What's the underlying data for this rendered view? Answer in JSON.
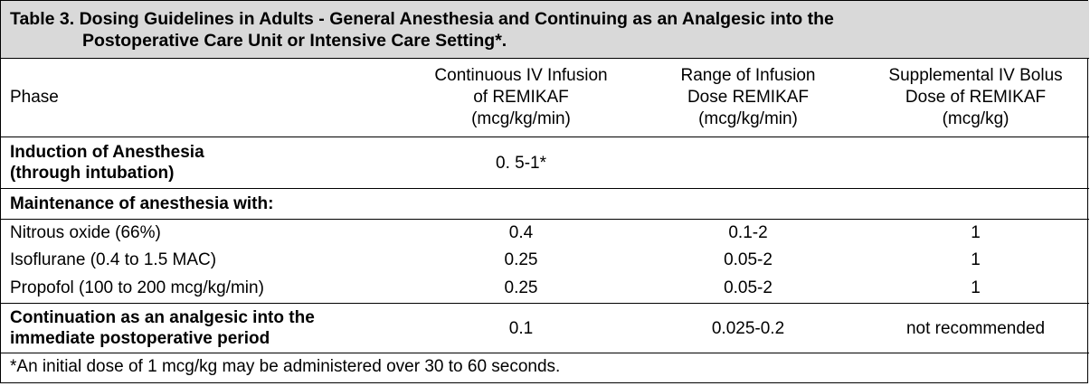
{
  "table": {
    "title_line1": "Table 3. Dosing Guidelines in Adults - General Anesthesia and Continuing as an Analgesic into the",
    "title_line2": "Postoperative Care Unit or Intensive Care Setting*.",
    "headers": {
      "phase": "Phase",
      "continuous_1": "Continuous IV Infusion",
      "continuous_2": "of REMIKAF",
      "continuous_3": "(mcg/kg/min)",
      "range_1": "Range of Infusion",
      "range_2": "Dose REMIKAF",
      "range_3": "(mcg/kg/min)",
      "bolus_1": "Supplemental IV Bolus",
      "bolus_2": "Dose of REMIKAF",
      "bolus_3": "(mcg/kg)"
    },
    "induction": {
      "phase_1": "Induction of Anesthesia",
      "phase_2": "(through intubation)",
      "continuous": "0. 5-1*",
      "range": "",
      "bolus": ""
    },
    "maintenance_heading": "Maintenance of anesthesia with:",
    "maintenance_rows": [
      {
        "phase": "Nitrous oxide (66%)",
        "continuous": "0.4",
        "range": "0.1-2",
        "bolus": "1"
      },
      {
        "phase": "Isoflurane (0.4 to 1.5 MAC)",
        "continuous": "0.25",
        "range": "0.05-2",
        "bolus": "1"
      },
      {
        "phase": "Propofol (100 to 200 mcg/kg/min)",
        "continuous": "0.25",
        "range": "0.05-2",
        "bolus": "1"
      }
    ],
    "continuation": {
      "phase_1": "Continuation as an analgesic into the",
      "phase_2": "immediate postoperative period",
      "continuous": "0.1",
      "range": "0.025-0.2",
      "bolus": "not recommended"
    },
    "footnote": "*An initial dose of 1 mcg/kg may be administered over 30 to 60 seconds."
  }
}
